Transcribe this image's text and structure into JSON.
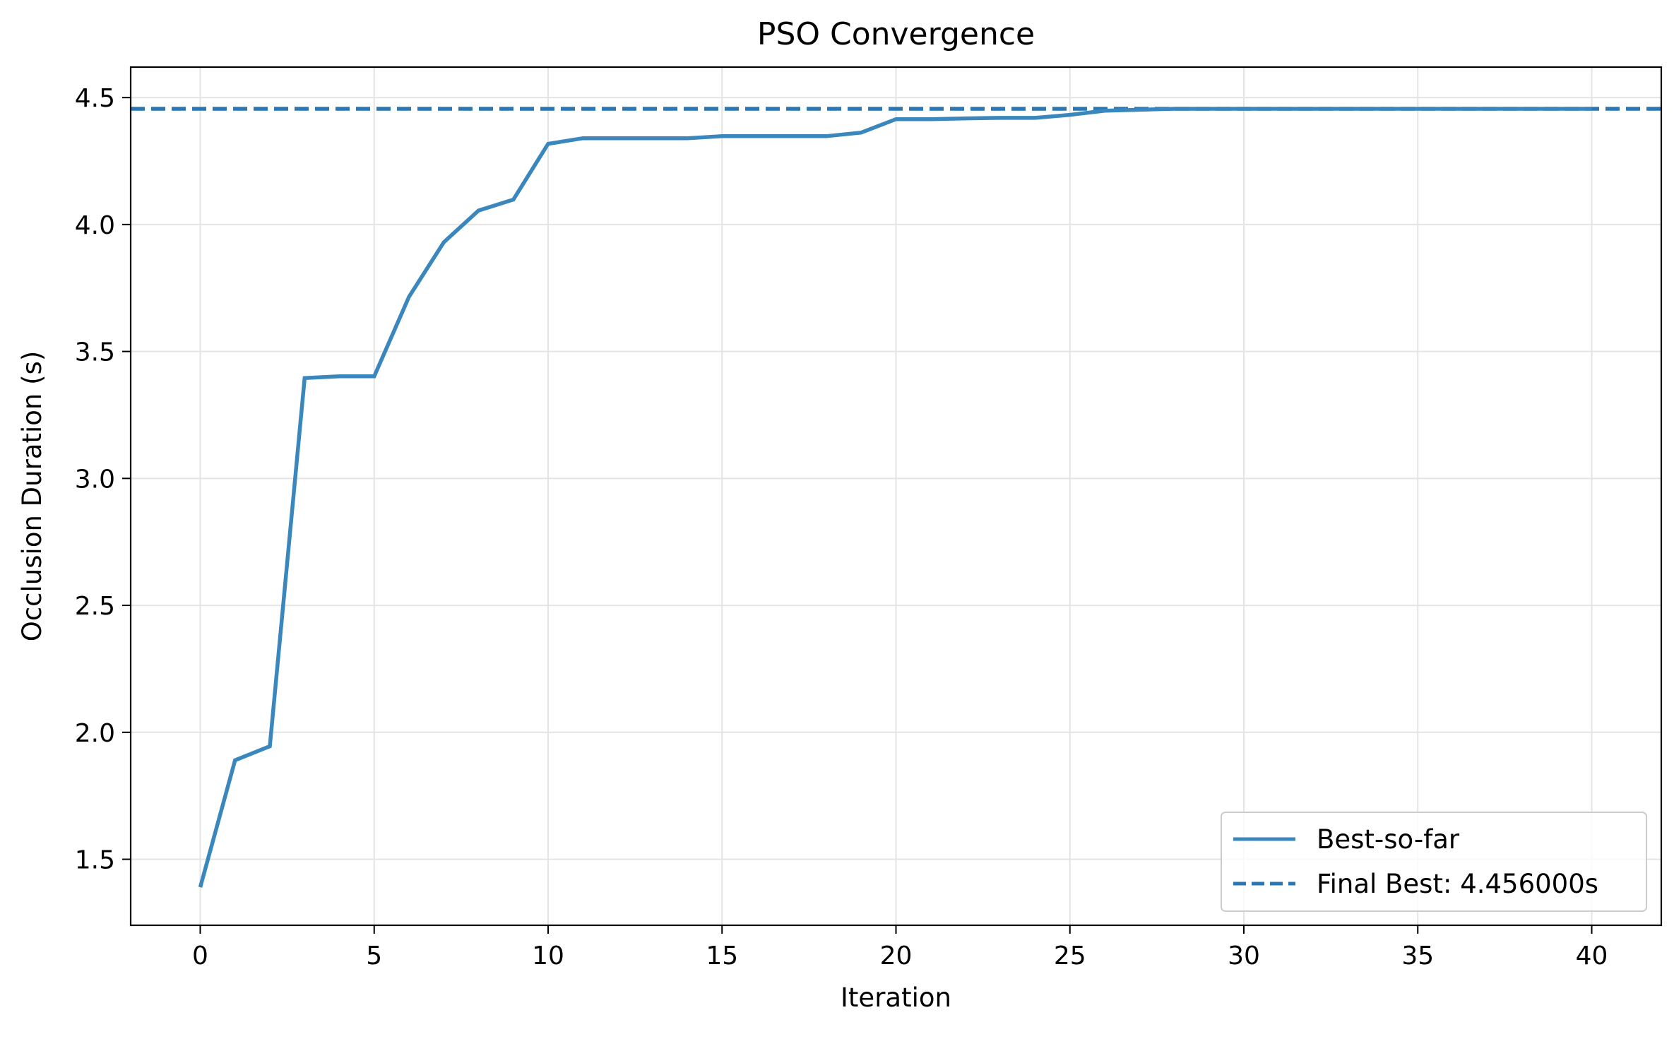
{
  "chart_data": {
    "type": "line",
    "title": "PSO Convergence",
    "xlabel": "Iteration",
    "ylabel": "Occlusion Duration (s)",
    "xlim": [
      -2,
      42
    ],
    "ylim": [
      1.24,
      4.62
    ],
    "xticks": [
      0,
      5,
      10,
      15,
      20,
      25,
      30,
      35,
      40
    ],
    "yticks": [
      1.5,
      2.0,
      2.5,
      3.0,
      3.5,
      4.0,
      4.5
    ],
    "xtick_labels": [
      "0",
      "5",
      "10",
      "15",
      "20",
      "25",
      "30",
      "35",
      "40"
    ],
    "ytick_labels": [
      "1.5",
      "2.0",
      "2.5",
      "3.0",
      "3.5",
      "4.0",
      "4.5"
    ],
    "grid": true,
    "legend_position": "lower-right",
    "series": [
      {
        "name": "Best-so-far",
        "style": "solid",
        "color": "#3a87be",
        "x": [
          0,
          1,
          2,
          3,
          4,
          5,
          6,
          7,
          8,
          9,
          10,
          11,
          12,
          13,
          14,
          15,
          16,
          17,
          18,
          19,
          20,
          21,
          22,
          23,
          24,
          25,
          26,
          27,
          28,
          29,
          30,
          31,
          32,
          33,
          34,
          35,
          36,
          37,
          38,
          39,
          40
        ],
        "y": [
          1.39,
          1.89,
          1.945,
          3.395,
          3.402,
          3.402,
          3.715,
          3.93,
          4.055,
          4.098,
          4.318,
          4.34,
          4.34,
          4.34,
          4.34,
          4.348,
          4.348,
          4.348,
          4.348,
          4.362,
          4.415,
          4.415,
          4.418,
          4.42,
          4.42,
          4.432,
          4.448,
          4.452,
          4.456,
          4.456,
          4.456,
          4.456,
          4.456,
          4.456,
          4.456,
          4.456,
          4.456,
          4.456,
          4.456,
          4.456,
          4.456
        ]
      },
      {
        "name": "Final Best: 4.456000s",
        "style": "dashed",
        "color": "#2a77b4",
        "hline": 4.456
      }
    ]
  }
}
